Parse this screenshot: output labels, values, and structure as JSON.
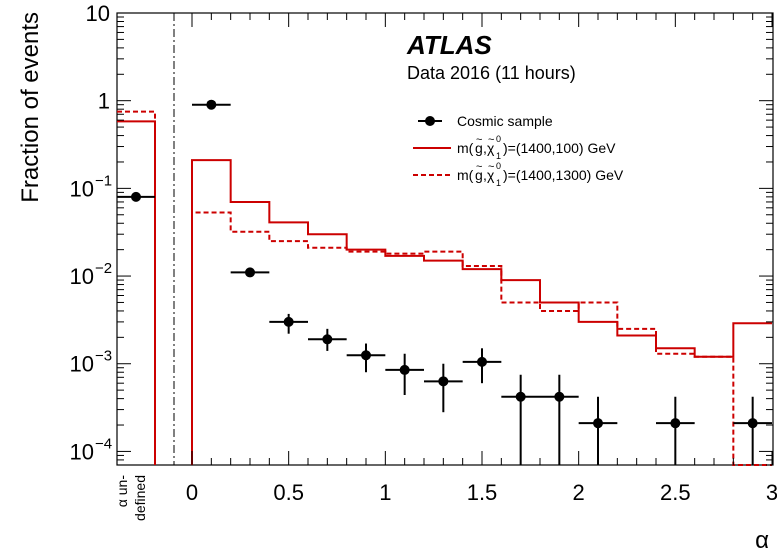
{
  "chart_data": {
    "type": "histogram",
    "ylabel": "Fraction of events",
    "xlabel": "α",
    "yscale": "log",
    "ylim": [
      7e-05,
      10
    ],
    "xlim": [
      0,
      3
    ],
    "experiment": "ATLAS",
    "dataset": "Data 2016 (11 hours)",
    "undefined_bin_label": [
      "α un-",
      "defined"
    ],
    "x_ticks": [
      "0",
      "0.5",
      "1",
      "1.5",
      "2",
      "2.5",
      "3"
    ],
    "y_ticks": [
      {
        "value": 10,
        "base": "10",
        "exp": ""
      },
      {
        "value": 1,
        "base": "1",
        "exp": ""
      },
      {
        "value": 0.1,
        "base": "10",
        "exp": "−1"
      },
      {
        "value": 0.01,
        "base": "10",
        "exp": "−2"
      },
      {
        "value": 0.001,
        "base": "10",
        "exp": "−3"
      },
      {
        "value": 0.0001,
        "base": "10",
        "exp": "−4"
      }
    ],
    "bin_edges": [
      0,
      0.2,
      0.4,
      0.6,
      0.8,
      1.0,
      1.2,
      1.4,
      1.6,
      1.8,
      2.0,
      2.2,
      2.4,
      2.6,
      2.8,
      3.0
    ],
    "series": [
      {
        "name": "Cosmic sample",
        "kind": "points",
        "color": "#000000",
        "undefined_value": 0.08,
        "points": [
          {
            "x": 0.1,
            "y": 0.9,
            "lo": 0.9,
            "hi": 0.9
          },
          {
            "x": 0.3,
            "y": 0.011,
            "lo": 0.011,
            "hi": 0.011
          },
          {
            "x": 0.5,
            "y": 0.003,
            "lo": 0.0022,
            "hi": 0.0037
          },
          {
            "x": 0.7,
            "y": 0.0019,
            "lo": 0.0014,
            "hi": 0.0025
          },
          {
            "x": 0.9,
            "y": 0.00125,
            "lo": 0.0008,
            "hi": 0.0017
          },
          {
            "x": 1.1,
            "y": 0.00085,
            "lo": 0.00044,
            "hi": 0.0013
          },
          {
            "x": 1.3,
            "y": 0.00063,
            "lo": 0.00028,
            "hi": 0.001
          },
          {
            "x": 1.5,
            "y": 0.00105,
            "lo": 0.0006,
            "hi": 0.0015
          },
          {
            "x": 1.7,
            "y": 0.00042,
            "lo": 7e-05,
            "hi": 0.00075
          },
          {
            "x": 1.9,
            "y": 0.00042,
            "lo": 7e-05,
            "hi": 0.00075
          },
          {
            "x": 2.1,
            "y": 0.00021,
            "lo": 7e-05,
            "hi": 0.00042
          },
          {
            "x": 2.5,
            "y": 0.00021,
            "lo": 7e-05,
            "hi": 0.00042
          },
          {
            "x": 2.9,
            "y": 0.00021,
            "lo": 7e-05,
            "hi": 0.00042
          }
        ]
      },
      {
        "name": "m(g̃,χ̃₁⁰)=(1400,100) GeV",
        "kind": "step",
        "style": "solid",
        "color": "#cc0000",
        "undefined_value": 0.58,
        "values": [
          0.21,
          0.07,
          0.041,
          0.03,
          0.02,
          0.017,
          0.015,
          0.012,
          0.009,
          0.005,
          0.003,
          0.0021,
          0.0015,
          0.0012,
          0.0029
        ]
      },
      {
        "name": "m(g̃,χ̃₁⁰)=(1400,1300) GeV",
        "kind": "step",
        "style": "dashed",
        "color": "#cc0000",
        "undefined_value": 0.75,
        "values": [
          0.053,
          0.032,
          0.025,
          0.021,
          0.019,
          0.018,
          0.019,
          0.013,
          0.005,
          0.004,
          0.005,
          0.0025,
          0.0013,
          0.0012,
          0
        ]
      }
    ],
    "legend": {
      "placement": "top-right",
      "entries": [
        {
          "label": "Cosmic sample"
        },
        {
          "prefix": "m(",
          "g": "g",
          "chi": "χ",
          "chi_sup": "0",
          "chi_sub": "1",
          "suffix": ")=(1400,100) GeV"
        },
        {
          "prefix": "m(",
          "g": "g",
          "chi": "χ",
          "chi_sup": "0",
          "chi_sub": "1",
          "suffix": ")=(1400,1300) GeV"
        }
      ]
    }
  }
}
